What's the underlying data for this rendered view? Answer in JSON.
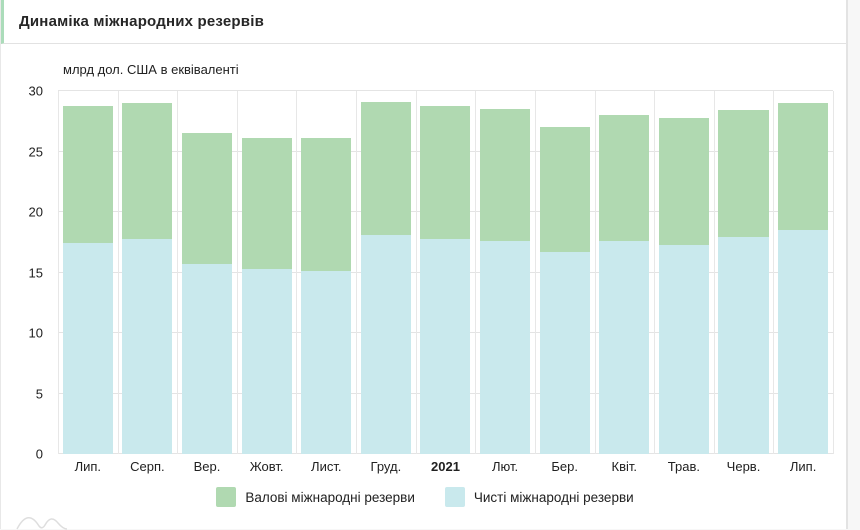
{
  "header": {
    "title": "Динаміка міжнародних резервів"
  },
  "chart_data": {
    "type": "bar",
    "bar_mode": "overlay",
    "title": "Динаміка міжнародних резервів",
    "subtitle": "млрд дол. США в еквіваленті",
    "xlabel": "",
    "ylabel": "млрд дол. США в еквіваленті",
    "categories": [
      "Лип.",
      "Серп.",
      "Вер.",
      "Жовт.",
      "Лист.",
      "Груд.",
      "2021",
      "Лют.",
      "Бер.",
      "Квіт.",
      "Трав.",
      "Черв.",
      "Лип."
    ],
    "bold_category": "2021",
    "series": [
      {
        "name": "Валові міжнародні резерви",
        "color": "#b0d9b1",
        "values": [
          28.8,
          29.0,
          26.5,
          26.1,
          26.1,
          29.1,
          28.8,
          28.5,
          27.0,
          28.0,
          27.8,
          28.4,
          29.0
        ]
      },
      {
        "name": "Чисті міжнародні резерви",
        "color": "#c9e9ed",
        "values": [
          17.4,
          17.8,
          15.7,
          15.3,
          15.1,
          18.1,
          17.8,
          17.6,
          16.7,
          17.6,
          17.3,
          17.9,
          18.5
        ]
      }
    ],
    "ylim": [
      0,
      30
    ],
    "yticks": [
      0,
      5,
      10,
      15,
      20,
      25,
      30
    ],
    "grid": true,
    "legend_position": "bottom"
  },
  "colors": {
    "accent_border": "#abdcba",
    "gridline": "#e4e4e4",
    "gross_bar": "#b0d9b1",
    "net_bar": "#c9e9ed"
  }
}
